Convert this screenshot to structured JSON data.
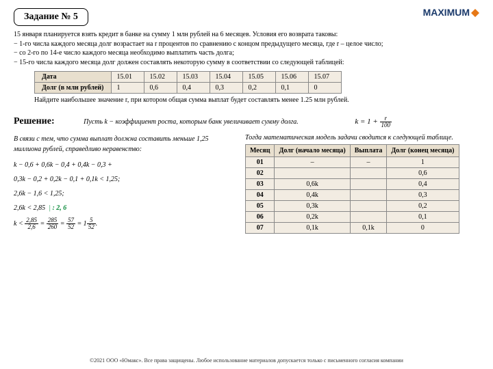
{
  "task_label": "Задание № 5",
  "logo_text": "MAXIMUM",
  "problem": {
    "intro": "15 января планируется взять кредит в банке на сумму 1 млн рублей на 6 месяцев. Условия его возврата таковы:",
    "c1": "− 1-го числа каждого месяца долг возрастает на r процентов по сравнению с концом предыдущего месяца, где r – целое число;",
    "c2": "− со 2-го по 14-е число каждого месяца необходимо выплатить часть долга;",
    "c3": "− 15-го числа каждого месяца долг должен составлять некоторую сумму в соответствии со следующей таблицей:"
  },
  "debt_table": {
    "row1": [
      "Дата",
      "15.01",
      "15.02",
      "15.03",
      "15.04",
      "15.05",
      "15.06",
      "15.07"
    ],
    "row2": [
      "Долг (в млн рублей)",
      "1",
      "0,6",
      "0,4",
      "0,3",
      "0,2",
      "0,1",
      "0"
    ]
  },
  "find": "Найдите наибольшее значение r, при котором общая сумма выплат будет составлять менее 1.25 млн рублей.",
  "solution_label": "Решение:",
  "let": "Пусть k − коэффициент роста, которым банк увеличивает сумму долга.",
  "left_note": "В связи с тем, что сумма выплат должна составить меньше 1,25 миллиона рублей, справедливо неравенство:",
  "eq1": "k − 0,6 + 0,6k − 0,4 + 0,4k − 0,3 +",
  "eq2": "0,3k − 0,2 + 0,2k − 0,1 + 0,1k < 1,25;",
  "eq3": "2,6k − 1,6 < 1,25;",
  "eq4": "2,6k < 2,85",
  "div_note": ": 2, 6",
  "right_note": "Тогда математическая модель задачи сводится к следующей таблице.",
  "month_table": {
    "head": [
      "Месяц",
      "Долг (начало месяца)",
      "Выплата",
      "Долг (конец месяца)"
    ],
    "rows": [
      [
        "01",
        "–",
        "–",
        "1"
      ],
      [
        "02",
        "",
        "",
        "0,6"
      ],
      [
        "03",
        "0,6k",
        "",
        "0,4"
      ],
      [
        "04",
        "0,4k",
        "",
        "0,3"
      ],
      [
        "05",
        "0,3k",
        "",
        "0,2"
      ],
      [
        "06",
        "0,2k",
        "",
        "0,1"
      ],
      [
        "07",
        "0,1k",
        "0,1k",
        "0"
      ]
    ]
  },
  "footer": "©2021 ООО «Юмакс». Все права защищены. Любое использование материалов допускается только с письменного согласия компании"
}
